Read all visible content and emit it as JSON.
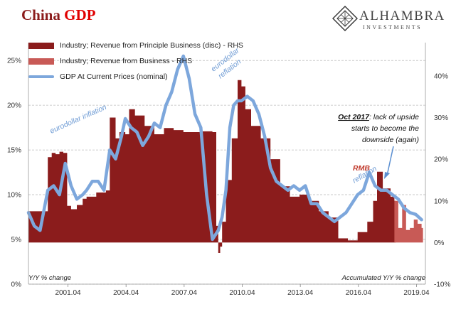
{
  "title": {
    "word1": "China",
    "word2": "GDP"
  },
  "logo": {
    "name": "ALHAMBRA",
    "subtitle": "INVESTMENTS"
  },
  "colors": {
    "series_dark": "#8b1c1c",
    "series_light": "#c85a56",
    "series_gdp": "#7da7dc",
    "title_red": "#e00000",
    "annotation_blue": "#6e9bd4",
    "annotation_red": "#c0392b"
  },
  "chart_data": {
    "type": "area",
    "x_ticks": [
      "2001.04",
      "2004.04",
      "2007.04",
      "2010.04",
      "2013.04",
      "2016.04",
      "2019.04"
    ],
    "y_left": {
      "ticks": [
        "0%",
        "5%",
        "10%",
        "15%",
        "20%",
        "25%"
      ],
      "range": [
        0,
        27
      ],
      "label": "Y/Y % change"
    },
    "y_right": {
      "ticks": [
        "-10%",
        "0%",
        "10%",
        "20%",
        "30%",
        "40%"
      ],
      "range": [
        -10,
        48
      ],
      "label": "Accumulated Y/Y % change"
    },
    "grid": true,
    "legend_position": "top-left",
    "series": [
      {
        "name": "Industry; Revenue from Principle Business (disc) - RHS",
        "axis": "right",
        "style": "area",
        "x": [
          1999.0,
          1999.5,
          2000.0,
          2000.2,
          2000.4,
          2000.6,
          2000.8,
          2001.0,
          2001.2,
          2001.5,
          2001.8,
          2002.0,
          2002.5,
          2003.0,
          2003.2,
          2003.5,
          2003.7,
          2004.0,
          2004.2,
          2004.5,
          2005.0,
          2005.5,
          2006.0,
          2006.5,
          2007.0,
          2007.5,
          2008.0,
          2008.5,
          2008.7,
          2008.8,
          2008.9,
          2009.0,
          2009.2,
          2009.5,
          2009.8,
          2010.0,
          2010.2,
          2010.5,
          2011.0,
          2011.5,
          2012.0,
          2012.5,
          2013.0,
          2013.5,
          2014.0,
          2014.5,
          2015.0,
          2015.5,
          2016.0,
          2016.5,
          2016.8,
          2017.0,
          2017.3,
          2017.7,
          2017.9
        ],
        "y": [
          7.5,
          7.5,
          20.5,
          21.5,
          21.2,
          21.8,
          21.5,
          8.8,
          8.0,
          9.0,
          10.5,
          11.0,
          12.0,
          12.5,
          30.0,
          25.0,
          26.5,
          26.0,
          32.0,
          30.5,
          28.0,
          26.0,
          27.5,
          27.0,
          26.5,
          26.5,
          26.7,
          26.5,
          4.0,
          -2.5,
          -1.0,
          5.0,
          15.0,
          25.0,
          39.0,
          37.5,
          32.0,
          28.0,
          25.0,
          20.0,
          13.5,
          11.0,
          11.5,
          10.0,
          7.5,
          6.0,
          1.0,
          0.5,
          2.5,
          5.0,
          10.0,
          17.0,
          13.0,
          11.0,
          10.0
        ]
      },
      {
        "name": "Industry; Revenue from Business - RHS",
        "axis": "right",
        "style": "area",
        "x": [
          2017.9,
          2018.1,
          2018.3,
          2018.5,
          2018.7,
          2018.9,
          2019.1,
          2019.3
        ],
        "y": [
          10.0,
          3.5,
          9.0,
          3.0,
          3.5,
          5.5,
          4.5,
          3.5
        ]
      },
      {
        "name": "GDP At Current Prices (nominal)",
        "axis": "left",
        "style": "line",
        "x": [
          1999.0,
          1999.3,
          1999.6,
          2000.0,
          2000.3,
          2000.6,
          2000.9,
          2001.2,
          2001.5,
          2001.8,
          2002.0,
          2002.3,
          2002.6,
          2002.9,
          2003.2,
          2003.5,
          2003.8,
          2004.0,
          2004.3,
          2004.6,
          2004.9,
          2005.2,
          2005.5,
          2005.8,
          2006.1,
          2006.4,
          2006.7,
          2007.0,
          2007.3,
          2007.6,
          2007.9,
          2008.2,
          2008.5,
          2008.8,
          2009.0,
          2009.2,
          2009.4,
          2009.6,
          2009.8,
          2010.0,
          2010.3,
          2010.6,
          2010.9,
          2011.2,
          2011.5,
          2011.8,
          2012.1,
          2012.4,
          2012.7,
          2013.0,
          2013.3,
          2013.6,
          2013.9,
          2014.2,
          2014.5,
          2014.8,
          2015.1,
          2015.4,
          2015.7,
          2016.0,
          2016.3,
          2016.6,
          2016.9,
          2017.2,
          2017.5,
          2017.8,
          2018.1,
          2018.4,
          2018.7,
          2019.0,
          2019.3
        ],
        "y": [
          8.0,
          6.5,
          6.0,
          10.5,
          11.0,
          10.0,
          13.5,
          11.0,
          9.5,
          10.0,
          10.5,
          11.5,
          11.5,
          10.5,
          15.0,
          14.0,
          16.5,
          18.5,
          17.5,
          17.0,
          15.5,
          16.5,
          18.0,
          17.5,
          20.0,
          21.5,
          24.0,
          25.5,
          23.0,
          19.0,
          17.5,
          10.0,
          5.0,
          6.0,
          7.5,
          10.5,
          17.5,
          20.0,
          20.5,
          20.5,
          21.0,
          20.5,
          19.0,
          16.5,
          13.0,
          11.5,
          11.0,
          10.5,
          11.0,
          10.5,
          11.0,
          9.0,
          9.0,
          8.0,
          7.5,
          7.0,
          7.5,
          8.0,
          9.0,
          10.0,
          10.5,
          12.5,
          11.0,
          10.5,
          10.5,
          10.0,
          9.5,
          8.5,
          8.0,
          7.8,
          7.2
        ]
      }
    ],
    "annotations": [
      {
        "text": "eurodollar inflation",
        "style": "blue"
      },
      {
        "text": "eurodollar",
        "style": "blue"
      },
      {
        "text": "reflation",
        "style": "blue"
      },
      {
        "text": "RMB",
        "style": "red"
      },
      {
        "text": "reflation",
        "style": "blue"
      }
    ],
    "note": {
      "bold": "Oct 2017",
      "lines": [
        ": lack of upside",
        "starts to become the",
        "downside (again)"
      ]
    }
  }
}
